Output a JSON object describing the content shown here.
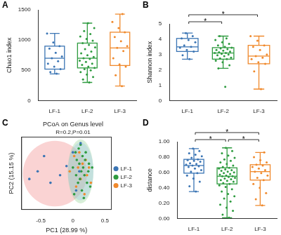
{
  "chart_data": [
    {
      "panel_label": "A",
      "type": "box",
      "categories": [
        "LF-1",
        "LF-2",
        "LF-3"
      ],
      "y_label": "Chao1 index",
      "ylim": [
        0,
        1500
      ],
      "yticks": [
        0,
        500,
        1000,
        1500
      ],
      "grid": false,
      "boxes": [
        {
          "color": "#3b75b4",
          "min": 440,
          "q1": 520,
          "median": 700,
          "q3": 900,
          "max": 1110,
          "points": [
            445,
            470,
            520,
            560,
            610,
            650,
            700,
            730,
            790,
            860,
            900,
            960,
            1110
          ]
        },
        {
          "color": "#2e9b3f",
          "min": 300,
          "q1": 540,
          "median": 700,
          "q3": 950,
          "max": 1280,
          "points": [
            300,
            350,
            390,
            430,
            470,
            500,
            520,
            540,
            560,
            590,
            610,
            640,
            660,
            690,
            700,
            720,
            750,
            780,
            810,
            850,
            880,
            920,
            950,
            990,
            1020,
            1060,
            1100,
            1150,
            1200,
            1280
          ]
        },
        {
          "color": "#f0892c",
          "min": 240,
          "q1": 580,
          "median": 870,
          "q3": 1130,
          "max": 1430,
          "points": [
            240,
            420,
            560,
            600,
            700,
            820,
            870,
            900,
            980,
            1050,
            1130,
            1200,
            1300,
            1430
          ]
        }
      ],
      "annotations": []
    },
    {
      "panel_label": "B",
      "type": "box",
      "categories": [
        "LF-1",
        "LF-2",
        "LF-3"
      ],
      "y_label": "Shannon index",
      "ylim": [
        0,
        5
      ],
      "yticks": [
        0,
        1,
        2,
        3,
        4,
        5
      ],
      "grid": false,
      "boxes": [
        {
          "color": "#3b75b4",
          "min": 2.7,
          "q1": 3.2,
          "median": 3.5,
          "q3": 4.05,
          "max": 4.4,
          "points": [
            2.7,
            2.95,
            3.2,
            3.3,
            3.45,
            3.5,
            3.6,
            3.8,
            3.95,
            4.05,
            4.2,
            4.4
          ]
        },
        {
          "color": "#2e9b3f",
          "min": 2.1,
          "q1": 2.7,
          "median": 3.1,
          "q3": 3.45,
          "max": 4.2,
          "points": [
            0.9,
            2.1,
            2.3,
            2.5,
            2.6,
            2.7,
            2.75,
            2.8,
            2.9,
            2.95,
            3.0,
            3.05,
            3.1,
            3.1,
            3.15,
            3.2,
            3.25,
            3.3,
            3.35,
            3.4,
            3.45,
            3.5,
            3.6,
            3.7,
            3.8,
            3.95,
            4.05,
            4.2
          ]
        },
        {
          "color": "#f0892c",
          "min": 0.75,
          "q1": 2.4,
          "median": 2.9,
          "q3": 3.6,
          "max": 4.2,
          "points": [
            0.75,
            1.9,
            2.4,
            2.5,
            2.7,
            2.8,
            2.9,
            3.0,
            3.3,
            3.5,
            3.6,
            3.9,
            4.2
          ]
        }
      ],
      "annotations": [
        {
          "from": "LF-1",
          "to": "LF-2",
          "label": "*"
        },
        {
          "from": "LF-1",
          "to": "LF-3",
          "label": "*"
        }
      ]
    },
    {
      "panel_label": "C",
      "type": "scatter",
      "title": "PCoA on Genus level",
      "subtitle": "R=0.2,P=0.01",
      "x_label": "PC1 (28.99 %)",
      "y_label": "PC2 (15.15 %)",
      "xlim": [
        -0.8,
        0.6
      ],
      "xticks": [
        -0.5,
        0,
        0.5
      ],
      "ylim": [
        -0.45,
        0.5
      ],
      "tick_labels": "x",
      "grid": false,
      "legend": "right",
      "series": [
        {
          "name": "LF-1",
          "color": "#3b75b4",
          "x": [
            -0.68,
            -0.55,
            -0.45,
            -0.35,
            -0.2,
            -0.1,
            0.0,
            0.05,
            0.1,
            0.12
          ],
          "y": [
            -0.05,
            0.05,
            0.25,
            -0.1,
            0.0,
            0.12,
            0.3,
            -0.2,
            0.05,
            0.42
          ],
          "ellipse": {
            "cx": -0.28,
            "cy": 0.02,
            "rx": 0.5,
            "ry": 0.43,
            "color": "#f08080"
          }
        },
        {
          "name": "LF-2",
          "color": "#2e9b3f",
          "x": [
            0.0,
            0.02,
            0.04,
            0.05,
            0.06,
            0.08,
            0.09,
            0.1,
            0.11,
            0.12,
            0.13,
            0.14,
            0.15,
            0.16,
            0.17,
            0.18,
            0.19,
            0.2,
            0.22,
            0.24,
            0.25,
            0.27,
            0.3
          ],
          "y": [
            0.1,
            -0.25,
            0.3,
            0.0,
            0.2,
            -0.1,
            0.35,
            0.15,
            -0.05,
            0.4,
            0.05,
            -0.2,
            0.25,
            0.1,
            -0.3,
            0.0,
            0.2,
            0.3,
            -0.1,
            0.05,
            0.15,
            -0.15,
            0.1
          ],
          "ellipse": {
            "cx": 0.12,
            "cy": 0.05,
            "rx": 0.2,
            "ry": 0.42,
            "color": "#8fd18f"
          }
        },
        {
          "name": "LF-3",
          "color": "#f0892c",
          "x": [
            -0.05,
            0.02,
            0.05,
            0.08,
            0.1,
            0.12,
            0.15,
            0.18,
            0.2,
            0.22,
            0.25,
            0.28
          ],
          "y": [
            0.05,
            0.25,
            -0.15,
            0.1,
            0.3,
            -0.05,
            0.15,
            -0.25,
            0.2,
            0.0,
            0.1,
            -0.1
          ],
          "ellipse": {
            "cx": 0.12,
            "cy": 0.05,
            "rx": 0.2,
            "ry": 0.38,
            "color": "#9ec5e8"
          }
        }
      ]
    },
    {
      "panel_label": "D",
      "type": "box",
      "categories": [
        "LF-1",
        "LF-2",
        "LF-3"
      ],
      "y_label": "distance",
      "ylim": [
        0,
        1.0
      ],
      "yticks": [
        {
          "value": 0,
          "label": "0.00"
        },
        {
          "value": 0.2,
          "label": "0.20"
        },
        {
          "value": 0.4,
          "label": "0.40"
        },
        {
          "value": 0.6,
          "label": "0.60"
        },
        {
          "value": 0.8,
          "label": "0.80"
        },
        {
          "value": 1.0,
          "label": "1.00"
        }
      ],
      "grid": false,
      "boxes": [
        {
          "color": "#3b75b4",
          "min": 0.35,
          "q1": 0.59,
          "median": 0.69,
          "q3": 0.77,
          "max": 0.91,
          "points": [
            0.35,
            0.42,
            0.48,
            0.52,
            0.56,
            0.59,
            0.61,
            0.63,
            0.65,
            0.67,
            0.68,
            0.69,
            0.7,
            0.71,
            0.72,
            0.74,
            0.75,
            0.76,
            0.77,
            0.79,
            0.81,
            0.83,
            0.85,
            0.88,
            0.91
          ]
        },
        {
          "color": "#2e9b3f",
          "min": 0.01,
          "q1": 0.45,
          "median": 0.55,
          "q3": 0.66,
          "max": 0.92,
          "points": [
            0.01,
            0.05,
            0.1,
            0.14,
            0.18,
            0.22,
            0.26,
            0.29,
            0.32,
            0.35,
            0.38,
            0.41,
            0.43,
            0.45,
            0.46,
            0.48,
            0.49,
            0.5,
            0.51,
            0.52,
            0.53,
            0.54,
            0.55,
            0.55,
            0.56,
            0.57,
            0.58,
            0.59,
            0.6,
            0.61,
            0.62,
            0.63,
            0.64,
            0.65,
            0.66,
            0.67,
            0.69,
            0.71,
            0.73,
            0.75,
            0.77,
            0.79,
            0.82,
            0.85,
            0.88,
            0.92
          ]
        },
        {
          "color": "#f0892c",
          "min": 0.17,
          "q1": 0.5,
          "median": 0.61,
          "q3": 0.7,
          "max": 0.86,
          "points": [
            0.17,
            0.25,
            0.33,
            0.4,
            0.45,
            0.5,
            0.53,
            0.56,
            0.59,
            0.61,
            0.63,
            0.65,
            0.67,
            0.69,
            0.7,
            0.73,
            0.76,
            0.8,
            0.86
          ]
        }
      ],
      "annotations": [
        {
          "from": "LF-1",
          "to": "LF-2",
          "label": "*"
        },
        {
          "from": "LF-2",
          "to": "LF-3",
          "label": "*"
        },
        {
          "from": "LF-1",
          "to": "LF-3",
          "label": "*"
        }
      ]
    }
  ]
}
